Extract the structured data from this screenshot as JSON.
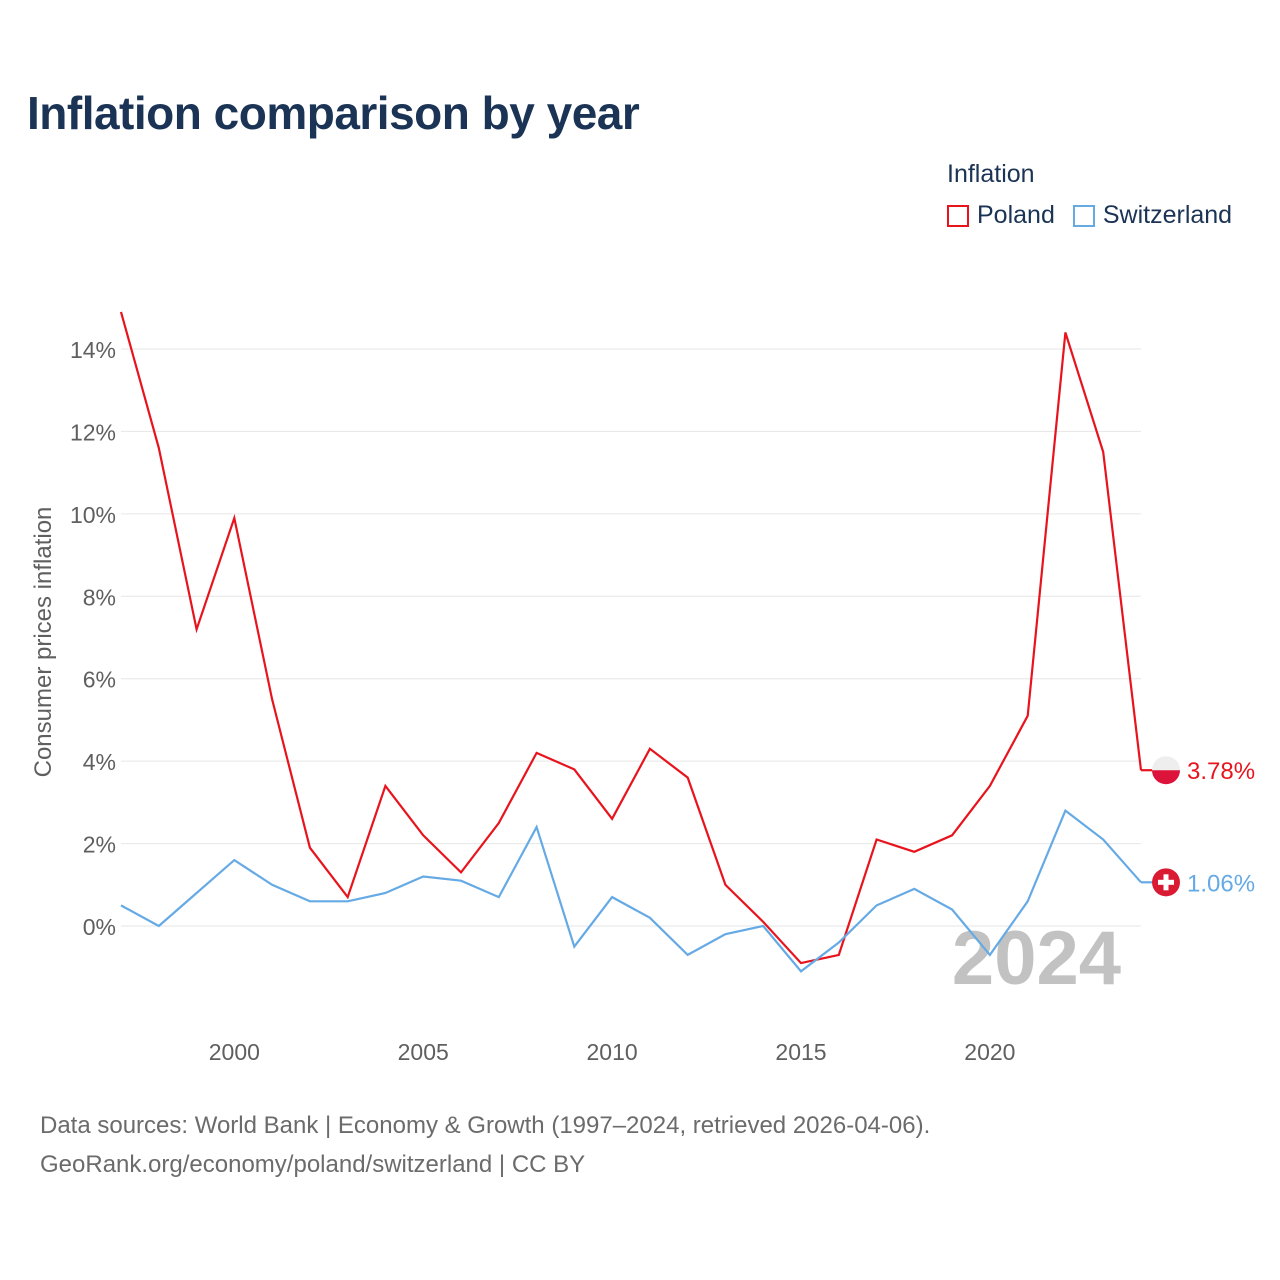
{
  "title": "Inflation comparison by year",
  "legend": {
    "title": "Inflation",
    "items": [
      {
        "label": "Poland",
        "color": "#e8141d"
      },
      {
        "label": "Switzerland",
        "color": "#66aae5"
      }
    ]
  },
  "chart_data": {
    "type": "line",
    "title": "Inflation comparison by year",
    "xlabel": "",
    "ylabel": "Consumer prices inflation",
    "year_watermark": "2024",
    "x": [
      1997,
      1998,
      1999,
      2000,
      2001,
      2002,
      2003,
      2004,
      2005,
      2006,
      2007,
      2008,
      2009,
      2010,
      2011,
      2012,
      2013,
      2014,
      2015,
      2016,
      2017,
      2018,
      2019,
      2020,
      2021,
      2022,
      2023,
      2024
    ],
    "xticks": [
      2000,
      2005,
      2010,
      2015,
      2020
    ],
    "xtick_labels": [
      "2000",
      "2005",
      "2010",
      "2015",
      "2020"
    ],
    "yticks": [
      0,
      2,
      4,
      6,
      8,
      10,
      12,
      14
    ],
    "ytick_labels": [
      "0%",
      "2%",
      "4%",
      "6%",
      "8%",
      "10%",
      "12%",
      "14%"
    ],
    "ylim": [
      -2.2,
      15.2
    ],
    "xlim": [
      1997,
      2024
    ],
    "grid": true,
    "series": [
      {
        "name": "Poland",
        "color": "#e8141d",
        "end_label": "3.78%",
        "values": [
          14.9,
          11.6,
          7.2,
          9.9,
          5.5,
          1.9,
          0.7,
          3.4,
          2.2,
          1.3,
          2.5,
          4.2,
          3.8,
          2.6,
          4.3,
          3.6,
          1.0,
          0.1,
          -0.9,
          -0.7,
          2.1,
          1.8,
          2.2,
          3.4,
          5.1,
          14.4,
          11.5,
          3.78
        ]
      },
      {
        "name": "Switzerland",
        "color": "#66aae5",
        "end_label": "1.06%",
        "values": [
          0.5,
          0.0,
          0.8,
          1.6,
          1.0,
          0.6,
          0.6,
          0.8,
          1.2,
          1.1,
          0.7,
          2.4,
          -0.5,
          0.7,
          0.2,
          -0.7,
          -0.2,
          0.0,
          -1.1,
          -0.4,
          0.5,
          0.9,
          0.4,
          -0.7,
          0.6,
          2.8,
          2.1,
          1.06
        ]
      }
    ]
  },
  "source": {
    "line1": "Data sources: World Bank | Economy & Growth (1997–2024, retrieved 2026-04-06).",
    "line2": "GeoRank.org/economy/poland/switzerland | CC BY"
  }
}
